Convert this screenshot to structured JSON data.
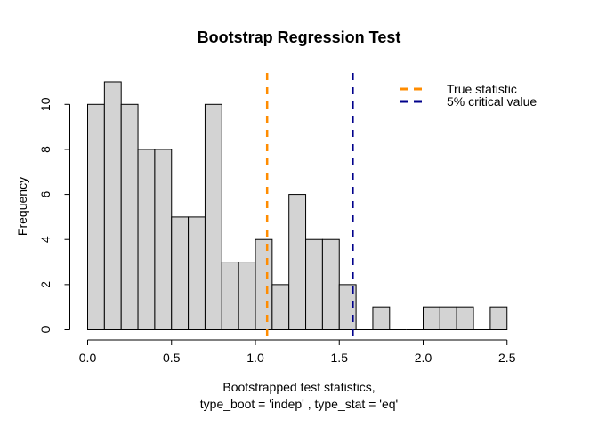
{
  "chart_data": {
    "type": "histogram",
    "title": "Bootstrap Regression Test",
    "xlabel_line1": "Bootstrapped test statistics,",
    "xlabel_line2": "type_boot = 'indep' , type_stat = 'eq'",
    "ylabel": "Frequency",
    "bin_start": 0.0,
    "bin_width": 0.1,
    "counts": [
      10,
      11,
      10,
      8,
      8,
      5,
      5,
      10,
      3,
      3,
      4,
      2,
      6,
      4,
      4,
      2,
      0,
      1,
      0,
      0,
      1,
      1,
      1,
      0,
      1
    ],
    "x_ticks": [
      {
        "value": 0.0,
        "label": "0.0"
      },
      {
        "value": 0.5,
        "label": "0.5"
      },
      {
        "value": 1.0,
        "label": "1.0"
      },
      {
        "value": 1.5,
        "label": "1.5"
      },
      {
        "value": 2.0,
        "label": "2.0"
      },
      {
        "value": 2.5,
        "label": "2.5"
      }
    ],
    "y_ticks": [
      {
        "value": 0,
        "label": "0"
      },
      {
        "value": 2,
        "label": "2"
      },
      {
        "value": 4,
        "label": "4"
      },
      {
        "value": 6,
        "label": "6"
      },
      {
        "value": 8,
        "label": "8"
      },
      {
        "value": 10,
        "label": "10"
      }
    ],
    "xlim": [
      0.0,
      2.5
    ],
    "ylim": [
      0,
      11
    ],
    "grid": false,
    "bar_fill": "#d3d3d3",
    "bar_border": "#000000",
    "legend_position": "top-right",
    "vlines": [
      {
        "x": 1.07,
        "color": "#ff8c00",
        "label": "True statistic"
      },
      {
        "x": 1.58,
        "color": "#00008b",
        "label": "5% critical value"
      }
    ]
  }
}
